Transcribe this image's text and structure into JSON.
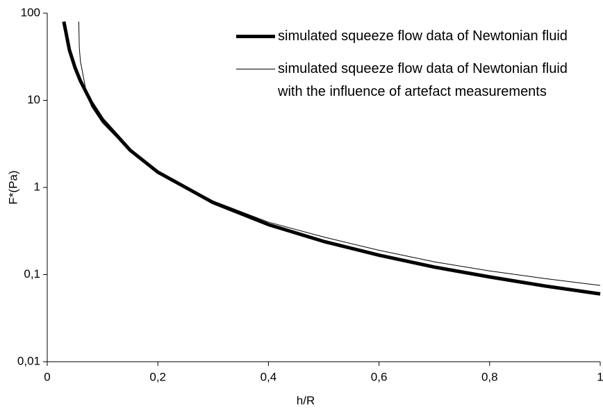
{
  "chart_data": {
    "type": "line",
    "x_label": "h/R",
    "y_label": "F*(Pa)",
    "xlim": [
      0,
      1
    ],
    "ylim": [
      0.01,
      100
    ],
    "y_log": true,
    "grid": false,
    "legend_position": "upper right",
    "xticks": [
      0,
      {
        "value": 0.2,
        "label": "0,2"
      },
      {
        "value": 0.4,
        "label": "0,4"
      },
      {
        "value": 0.6,
        "label": "0,6"
      },
      {
        "value": 0.8,
        "label": "0,8"
      },
      1
    ],
    "yticks": [
      {
        "value": 0.01,
        "label": "0,01"
      },
      {
        "value": 0.1,
        "label": "0,1"
      },
      1,
      10,
      100
    ],
    "series": [
      {
        "name": "simulated squeeze flow data of Newtonian fluid",
        "color": "#000000",
        "line_width": 5,
        "x": [
          0.03,
          0.04,
          0.05,
          0.06,
          0.08,
          0.1,
          0.15,
          0.2,
          0.3,
          0.4,
          0.5,
          0.6,
          0.7,
          0.8,
          0.9,
          1.0
        ],
        "values": [
          80,
          38,
          24,
          16.7,
          9.4,
          6,
          2.67,
          1.5,
          0.67,
          0.375,
          0.24,
          0.167,
          0.122,
          0.094,
          0.074,
          0.06
        ]
      },
      {
        "name": "simulated squeeze flow data of Newtonian fluid with the influence of artefact measurements",
        "color": "#000000",
        "line_width": 1,
        "x": [
          0.057,
          0.058,
          0.06,
          0.07,
          0.08,
          0.1,
          0.15,
          0.2,
          0.3,
          0.4,
          0.5,
          0.6,
          0.7,
          0.8,
          0.9,
          1.0
        ],
        "values": [
          80,
          40,
          28,
          13,
          8.5,
          5.5,
          2.6,
          1.5,
          0.7,
          0.4,
          0.27,
          0.19,
          0.14,
          0.11,
          0.09,
          0.075
        ]
      }
    ]
  }
}
